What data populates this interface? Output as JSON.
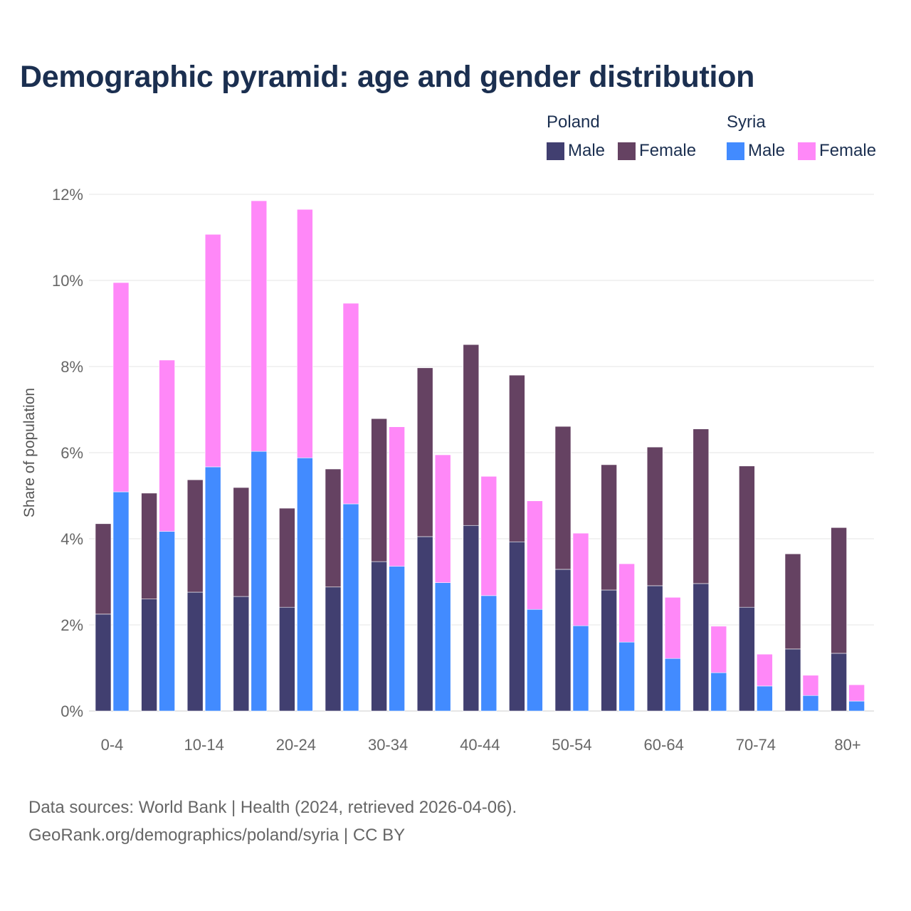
{
  "chart_data": {
    "type": "bar",
    "stacked": true,
    "title": "Demographic pyramid: age and gender distribution",
    "ylabel": "Share of population",
    "xlabel": "",
    "ylim": [
      0,
      12
    ],
    "yticks": [
      "0%",
      "2%",
      "4%",
      "6%",
      "8%",
      "10%",
      "12%"
    ],
    "ytick_values": [
      0,
      2,
      4,
      6,
      8,
      10,
      12
    ],
    "categories": [
      "0-4",
      "5-9",
      "10-14",
      "15-19",
      "20-24",
      "25-29",
      "30-34",
      "35-39",
      "40-44",
      "45-49",
      "50-54",
      "55-59",
      "60-64",
      "65-69",
      "70-74",
      "75-79",
      "80+"
    ],
    "xtick_labels": [
      "0-4",
      "10-14",
      "20-24",
      "30-34",
      "40-44",
      "50-54",
      "60-64",
      "70-74",
      "80+"
    ],
    "grid": true,
    "legend_position": "top-right",
    "countries": [
      {
        "name": "Poland",
        "series": [
          {
            "name": "Male",
            "color": "#413f70",
            "values": [
              2.25,
              2.6,
              2.76,
              2.66,
              2.41,
              2.88,
              3.47,
              4.05,
              4.31,
              3.93,
              3.29,
              2.81,
              2.91,
              2.96,
              2.41,
              1.44,
              1.34
            ]
          },
          {
            "name": "Female",
            "color": "#654262",
            "values": [
              2.1,
              2.46,
              2.61,
              2.53,
              2.3,
              2.74,
              3.32,
              3.92,
              4.2,
              3.87,
              3.32,
              2.91,
              3.22,
              3.59,
              3.28,
              2.21,
              2.92
            ]
          }
        ]
      },
      {
        "name": "Syria",
        "series": [
          {
            "name": "Male",
            "color": "#428bff",
            "values": [
              5.09,
              4.17,
              5.67,
              6.03,
              5.88,
              4.81,
              3.36,
              2.98,
              2.68,
              2.36,
              1.98,
              1.6,
              1.22,
              0.89,
              0.58,
              0.36,
              0.23
            ]
          },
          {
            "name": "Female",
            "color": "#ff88f8",
            "values": [
              4.86,
              3.98,
              5.4,
              5.82,
              5.77,
              4.66,
              3.24,
              2.97,
              2.77,
              2.52,
              2.15,
              1.82,
              1.42,
              1.08,
              0.74,
              0.47,
              0.38
            ]
          }
        ]
      }
    ]
  },
  "footer": {
    "line1": "Data sources: World Bank | Health (2024, retrieved 2026-04-06).",
    "line2": "GeoRank.org/demographics/poland/syria | CC BY"
  }
}
